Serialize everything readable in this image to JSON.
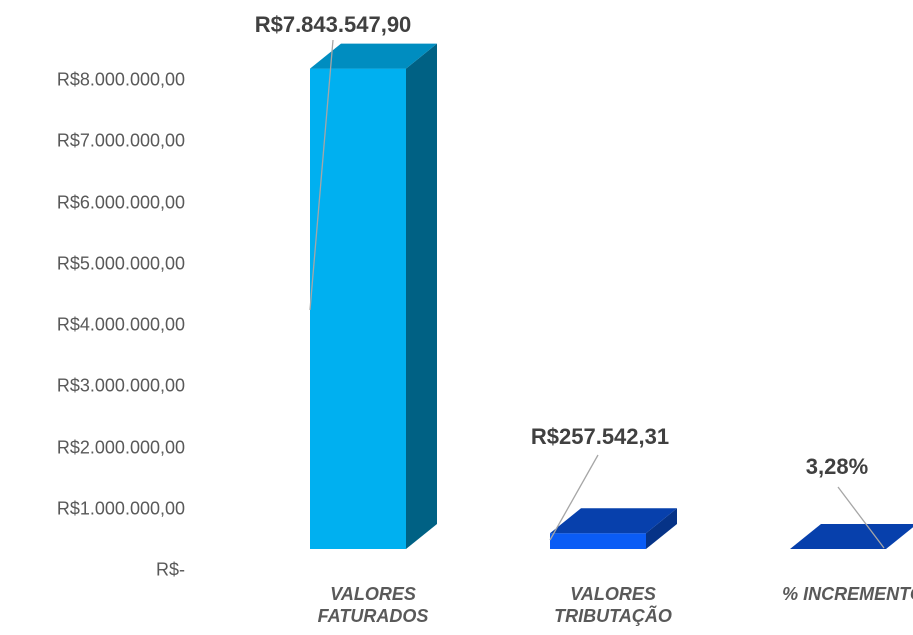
{
  "chart_data": {
    "type": "bar3d",
    "categories": [
      "VALORES FATURADOS",
      "VALORES TRIBUTAÇÃO",
      "% INCREMENTO"
    ],
    "values": [
      7843547.9,
      257542.31,
      3.28
    ],
    "value_labels": [
      "R$7.843.547,90",
      "R$257.542,31",
      "3,28%"
    ],
    "colors": [
      "#00b0f0",
      "#0a5cf5",
      "#0a5cf5"
    ],
    "ylim": [
      0,
      8000000
    ],
    "yticks": [
      {
        "value": 0,
        "label": "R$-"
      },
      {
        "value": 1000000,
        "label": "R$1.000.000,00"
      },
      {
        "value": 2000000,
        "label": "R$2.000.000,00"
      },
      {
        "value": 3000000,
        "label": "R$3.000.000,00"
      },
      {
        "value": 4000000,
        "label": "R$4.000.000,00"
      },
      {
        "value": 5000000,
        "label": "R$5.000.000,00"
      },
      {
        "value": 6000000,
        "label": "R$6.000.000,00"
      },
      {
        "value": 7000000,
        "label": "R$7.000.000,00"
      },
      {
        "value": 8000000,
        "label": "R$8.000.000,00"
      }
    ]
  }
}
